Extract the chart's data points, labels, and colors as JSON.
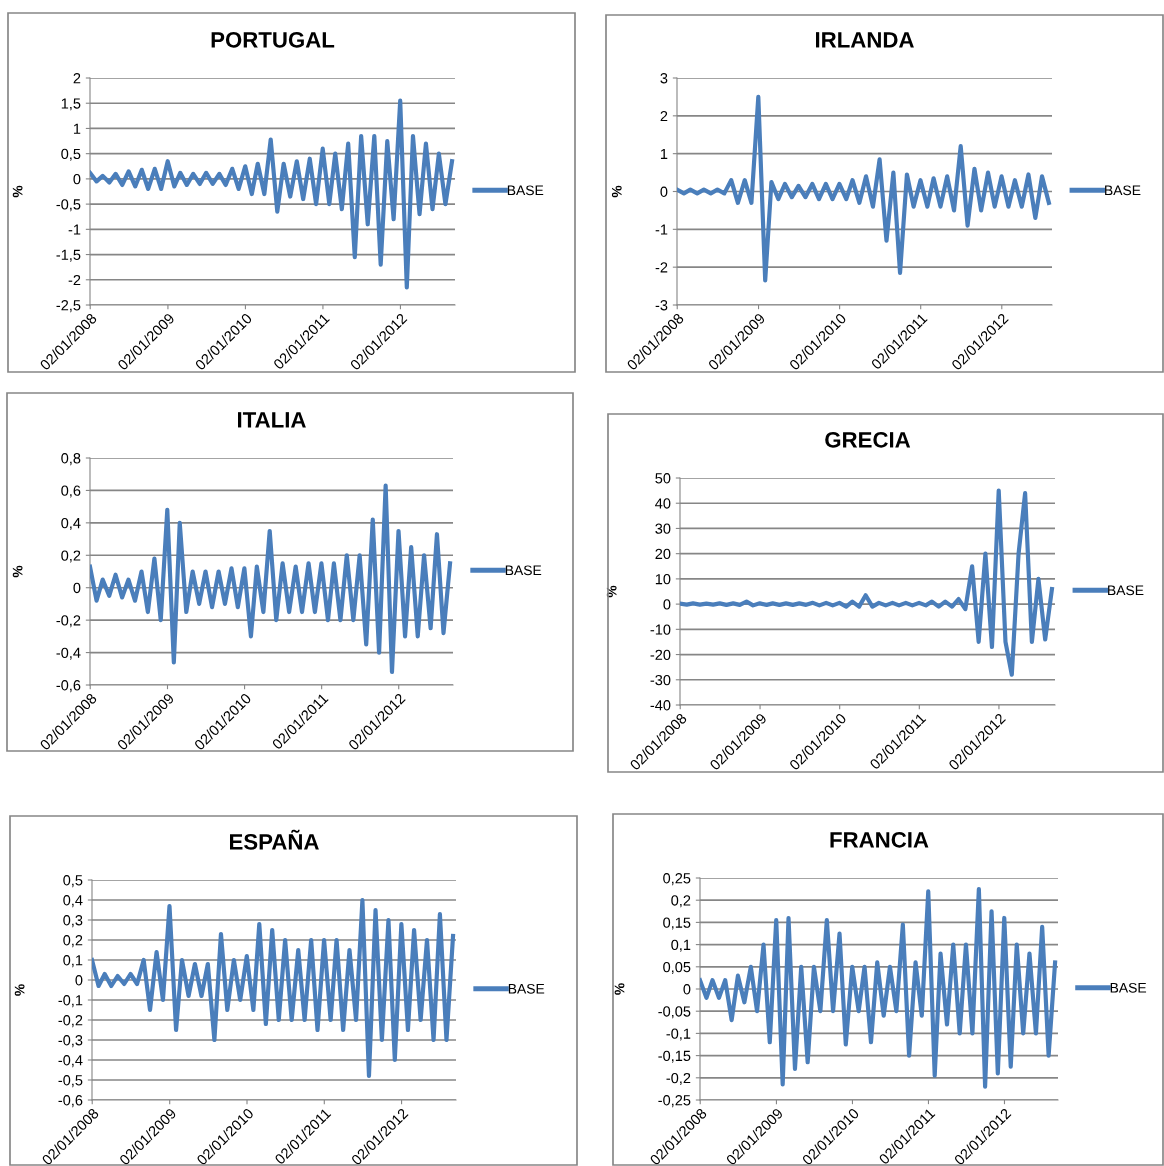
{
  "chart_data": [
    {
      "type": "line",
      "title": "PORTUGAL",
      "ylabel": "%",
      "grid": "y",
      "legend": "right",
      "x": [
        "2008-01",
        "2008-02",
        "2008-03",
        "2008-04",
        "2008-05",
        "2008-06",
        "2008-07",
        "2008-08",
        "2008-09",
        "2008-10",
        "2008-11",
        "2008-12",
        "2009-01",
        "2009-02",
        "2009-03",
        "2009-04",
        "2009-05",
        "2009-06",
        "2009-07",
        "2009-08",
        "2009-09",
        "2009-10",
        "2009-11",
        "2009-12",
        "2010-01",
        "2010-02",
        "2010-03",
        "2010-04",
        "2010-05",
        "2010-06",
        "2010-07",
        "2010-08",
        "2010-09",
        "2010-10",
        "2010-11",
        "2010-12",
        "2011-01",
        "2011-02",
        "2011-03",
        "2011-04",
        "2011-05",
        "2011-06",
        "2011-07",
        "2011-08",
        "2011-09",
        "2011-10",
        "2011-11",
        "2011-12",
        "2012-01",
        "2012-02",
        "2012-03",
        "2012-04",
        "2012-05",
        "2012-06",
        "2012-07",
        "2012-08",
        "2012-09"
      ],
      "series": [
        {
          "name": "BASE",
          "color": "#4a7ebb",
          "values": [
            0.12,
            -0.05,
            0.06,
            -0.07,
            0.1,
            -0.12,
            0.15,
            -0.15,
            0.18,
            -0.2,
            0.2,
            -0.2,
            0.35,
            -0.15,
            0.12,
            -0.12,
            0.1,
            -0.1,
            0.12,
            -0.1,
            0.1,
            -0.12,
            0.2,
            -0.2,
            0.25,
            -0.3,
            0.3,
            -0.3,
            0.78,
            -0.65,
            0.3,
            -0.35,
            0.35,
            -0.4,
            0.4,
            -0.5,
            0.6,
            -0.5,
            0.5,
            -0.6,
            0.7,
            -1.55,
            0.85,
            -0.9,
            0.85,
            -1.7,
            0.75,
            -0.8,
            1.55,
            -2.15,
            0.85,
            -0.7,
            0.7,
            -0.6,
            0.5,
            -0.5,
            0.35
          ]
        }
      ],
      "xlim": [
        "2008-01-01",
        "2012-09-15"
      ],
      "xticks": [
        {
          "value": "2008-01-02",
          "label": "02/01/2008"
        },
        {
          "value": "2009-01-02",
          "label": "02/01/2009"
        },
        {
          "value": "2010-01-02",
          "label": "02/01/2010"
        },
        {
          "value": "2011-01-02",
          "label": "02/01/2011"
        },
        {
          "value": "2012-01-02",
          "label": "02/01/2012"
        }
      ],
      "ylim": [
        -2.5,
        2
      ],
      "yticks": [
        2,
        {
          "value": 1.5,
          "label": "1,5"
        },
        1,
        {
          "value": 0.5,
          "label": "0,5"
        },
        0,
        {
          "value": -0.5,
          "label": "-0,5"
        },
        -1,
        {
          "value": -1.5,
          "label": "-1,5"
        },
        -2,
        {
          "value": -2.5,
          "label": "-2,5"
        }
      ]
    },
    {
      "type": "line",
      "title": "IRLANDA",
      "ylabel": "%",
      "grid": "y",
      "legend": "right",
      "x": [
        "2008-01",
        "2008-02",
        "2008-03",
        "2008-04",
        "2008-05",
        "2008-06",
        "2008-07",
        "2008-08",
        "2008-09",
        "2008-10",
        "2008-11",
        "2008-12",
        "2009-01",
        "2009-02",
        "2009-03",
        "2009-04",
        "2009-05",
        "2009-06",
        "2009-07",
        "2009-08",
        "2009-09",
        "2009-10",
        "2009-11",
        "2009-12",
        "2010-01",
        "2010-02",
        "2010-03",
        "2010-04",
        "2010-05",
        "2010-06",
        "2010-07",
        "2010-08",
        "2010-09",
        "2010-10",
        "2010-11",
        "2010-12",
        "2011-01",
        "2011-02",
        "2011-03",
        "2011-04",
        "2011-05",
        "2011-06",
        "2011-07",
        "2011-08",
        "2011-09",
        "2011-10",
        "2011-11",
        "2011-12",
        "2012-01",
        "2012-02",
        "2012-03",
        "2012-04",
        "2012-05",
        "2012-06",
        "2012-07",
        "2012-08"
      ],
      "series": [
        {
          "name": "BASE",
          "color": "#4a7ebb",
          "values": [
            0.05,
            -0.05,
            0.05,
            -0.05,
            0.05,
            -0.05,
            0.05,
            -0.05,
            0.3,
            -0.3,
            0.3,
            -0.3,
            2.5,
            -2.35,
            0.25,
            -0.2,
            0.2,
            -0.15,
            0.15,
            -0.15,
            0.2,
            -0.2,
            0.2,
            -0.2,
            0.2,
            -0.2,
            0.3,
            -0.3,
            0.4,
            -0.4,
            0.85,
            -1.3,
            0.5,
            -2.15,
            0.45,
            -0.4,
            0.3,
            -0.4,
            0.35,
            -0.4,
            0.4,
            -0.5,
            1.2,
            -0.9,
            0.6,
            -0.5,
            0.5,
            -0.4,
            0.4,
            -0.4,
            0.3,
            -0.4,
            0.45,
            -0.7,
            0.4,
            -0.3
          ]
        }
      ],
      "xlim": [
        "2008-01-01",
        "2012-08-15"
      ],
      "xticks": [
        {
          "value": "2008-01-02",
          "label": "02/01/2008"
        },
        {
          "value": "2009-01-02",
          "label": "02/01/2009"
        },
        {
          "value": "2010-01-02",
          "label": "02/01/2010"
        },
        {
          "value": "2011-01-02",
          "label": "02/01/2011"
        },
        {
          "value": "2012-01-02",
          "label": "02/01/2012"
        }
      ],
      "ylim": [
        -3,
        3
      ],
      "yticks": [
        3,
        2,
        1,
        0,
        -1,
        -2,
        -3
      ]
    },
    {
      "type": "line",
      "title": "ITALIA",
      "ylabel": "%",
      "grid": "y",
      "legend": "right",
      "x": [
        "2008-01",
        "2008-02",
        "2008-03",
        "2008-04",
        "2008-05",
        "2008-06",
        "2008-07",
        "2008-08",
        "2008-09",
        "2008-10",
        "2008-11",
        "2008-12",
        "2009-01",
        "2009-02",
        "2009-03",
        "2009-04",
        "2009-05",
        "2009-06",
        "2009-07",
        "2009-08",
        "2009-09",
        "2009-10",
        "2009-11",
        "2009-12",
        "2010-01",
        "2010-02",
        "2010-03",
        "2010-04",
        "2010-05",
        "2010-06",
        "2010-07",
        "2010-08",
        "2010-09",
        "2010-10",
        "2010-11",
        "2010-12",
        "2011-01",
        "2011-02",
        "2011-03",
        "2011-04",
        "2011-05",
        "2011-06",
        "2011-07",
        "2011-08",
        "2011-09",
        "2011-10",
        "2011-11",
        "2011-12",
        "2012-01",
        "2012-02",
        "2012-03",
        "2012-04",
        "2012-05",
        "2012-06",
        "2012-07",
        "2012-08",
        "2012-09"
      ],
      "series": [
        {
          "name": "BASE",
          "color": "#4a7ebb",
          "values": [
            0.13,
            -0.08,
            0.05,
            -0.05,
            0.08,
            -0.06,
            0.05,
            -0.08,
            0.1,
            -0.15,
            0.18,
            -0.2,
            0.48,
            -0.46,
            0.4,
            -0.15,
            0.1,
            -0.1,
            0.1,
            -0.12,
            0.1,
            -0.1,
            0.12,
            -0.12,
            0.12,
            -0.3,
            0.13,
            -0.15,
            0.35,
            -0.2,
            0.15,
            -0.15,
            0.13,
            -0.15,
            0.15,
            -0.15,
            0.15,
            -0.2,
            0.15,
            -0.2,
            0.2,
            -0.2,
            0.2,
            -0.35,
            0.42,
            -0.4,
            0.63,
            -0.52,
            0.35,
            -0.3,
            0.25,
            -0.3,
            0.2,
            -0.25,
            0.33,
            -0.28,
            0.15
          ]
        }
      ],
      "xlim": [
        "2008-01-01",
        "2012-09-15"
      ],
      "xticks": [
        {
          "value": "2008-01-02",
          "label": "02/01/2008"
        },
        {
          "value": "2009-01-02",
          "label": "02/01/2009"
        },
        {
          "value": "2010-01-02",
          "label": "02/01/2010"
        },
        {
          "value": "2011-01-02",
          "label": "02/01/2011"
        },
        {
          "value": "2012-01-02",
          "label": "02/01/2012"
        }
      ],
      "ylim": [
        -0.6,
        0.8
      ],
      "yticks": [
        {
          "value": 0.8,
          "label": "0,8"
        },
        {
          "value": 0.6,
          "label": "0,6"
        },
        {
          "value": 0.4,
          "label": "0,4"
        },
        {
          "value": 0.2,
          "label": "0,2"
        },
        0,
        {
          "value": -0.2,
          "label": "-0,2"
        },
        {
          "value": -0.4,
          "label": "-0,4"
        },
        {
          "value": -0.6,
          "label": "-0,6"
        }
      ]
    },
    {
      "type": "line",
      "title": "GRECIA",
      "ylabel": "%",
      "grid": "y",
      "legend": "right",
      "x": [
        "2008-01",
        "2008-02",
        "2008-03",
        "2008-04",
        "2008-05",
        "2008-06",
        "2008-07",
        "2008-08",
        "2008-09",
        "2008-10",
        "2008-11",
        "2008-12",
        "2009-01",
        "2009-02",
        "2009-03",
        "2009-04",
        "2009-05",
        "2009-06",
        "2009-07",
        "2009-08",
        "2009-09",
        "2009-10",
        "2009-11",
        "2009-12",
        "2010-01",
        "2010-02",
        "2010-03",
        "2010-04",
        "2010-05",
        "2010-06",
        "2010-07",
        "2010-08",
        "2010-09",
        "2010-10",
        "2010-11",
        "2010-12",
        "2011-01",
        "2011-02",
        "2011-03",
        "2011-04",
        "2011-05",
        "2011-06",
        "2011-07",
        "2011-08",
        "2011-09",
        "2011-10",
        "2011-11",
        "2011-12",
        "2012-01",
        "2012-02",
        "2012-03",
        "2012-04",
        "2012-05",
        "2012-06",
        "2012-07",
        "2012-08",
        "2012-09"
      ],
      "series": [
        {
          "name": "BASE",
          "color": "#4a7ebb",
          "values": [
            0.2,
            -0.2,
            0.3,
            -0.2,
            0.2,
            -0.2,
            0.3,
            -0.3,
            0.3,
            -0.3,
            1,
            -0.5,
            0.3,
            -0.3,
            0.3,
            -0.3,
            0.3,
            -0.3,
            0.3,
            -0.3,
            0.5,
            -0.5,
            0.5,
            -0.5,
            0.5,
            -1,
            1,
            -1,
            3.5,
            -1,
            0.5,
            -0.5,
            0.5,
            -0.5,
            0.5,
            -0.5,
            0.5,
            -0.5,
            1,
            -1,
            1,
            -1,
            2,
            -2,
            15,
            -15,
            20,
            -17,
            45,
            -15,
            -28,
            20,
            44,
            -15,
            10,
            -14,
            6
          ]
        }
      ],
      "xlim": [
        "2008-01-01",
        "2012-09-15"
      ],
      "xticks": [
        {
          "value": "2008-01-02",
          "label": "02/01/2008"
        },
        {
          "value": "2009-01-02",
          "label": "02/01/2009"
        },
        {
          "value": "2010-01-02",
          "label": "02/01/2010"
        },
        {
          "value": "2011-01-02",
          "label": "02/01/2011"
        },
        {
          "value": "2012-01-02",
          "label": "02/01/2012"
        }
      ],
      "ylim": [
        -40,
        50
      ],
      "yticks": [
        50,
        40,
        30,
        20,
        10,
        0,
        -10,
        -20,
        -30,
        -40
      ]
    },
    {
      "type": "line",
      "title": "ESPAÑA",
      "ylabel": "%",
      "grid": "y",
      "legend": "right",
      "x": [
        "2008-01",
        "2008-02",
        "2008-03",
        "2008-04",
        "2008-05",
        "2008-06",
        "2008-07",
        "2008-08",
        "2008-09",
        "2008-10",
        "2008-11",
        "2008-12",
        "2009-01",
        "2009-02",
        "2009-03",
        "2009-04",
        "2009-05",
        "2009-06",
        "2009-07",
        "2009-08",
        "2009-09",
        "2009-10",
        "2009-11",
        "2009-12",
        "2010-01",
        "2010-02",
        "2010-03",
        "2010-04",
        "2010-05",
        "2010-06",
        "2010-07",
        "2010-08",
        "2010-09",
        "2010-10",
        "2010-11",
        "2010-12",
        "2011-01",
        "2011-02",
        "2011-03",
        "2011-04",
        "2011-05",
        "2011-06",
        "2011-07",
        "2011-08",
        "2011-09",
        "2011-10",
        "2011-11",
        "2011-12",
        "2012-01",
        "2012-02",
        "2012-03",
        "2012-04",
        "2012-05",
        "2012-06",
        "2012-07",
        "2012-08",
        "2012-09"
      ],
      "series": [
        {
          "name": "BASE",
          "color": "#4a7ebb",
          "values": [
            0.1,
            -0.03,
            0.03,
            -0.03,
            0.02,
            -0.02,
            0.03,
            -0.02,
            0.1,
            -0.15,
            0.14,
            -0.1,
            0.37,
            -0.25,
            0.1,
            -0.08,
            0.08,
            -0.08,
            0.08,
            -0.3,
            0.23,
            -0.15,
            0.1,
            -0.1,
            0.12,
            -0.15,
            0.28,
            -0.22,
            0.25,
            -0.2,
            0.2,
            -0.2,
            0.15,
            -0.2,
            0.2,
            -0.25,
            0.2,
            -0.2,
            0.2,
            -0.25,
            0.15,
            -0.2,
            0.4,
            -0.48,
            0.35,
            -0.3,
            0.3,
            -0.4,
            0.28,
            -0.25,
            0.25,
            -0.2,
            0.2,
            -0.3,
            0.33,
            -0.3,
            0.22
          ]
        }
      ],
      "xlim": [
        "2008-01-01",
        "2012-09-15"
      ],
      "xticks": [
        {
          "value": "2008-01-02",
          "label": "02/01/2008"
        },
        {
          "value": "2009-01-02",
          "label": "02/01/2009"
        },
        {
          "value": "2010-01-02",
          "label": "02/01/2010"
        },
        {
          "value": "2011-01-02",
          "label": "02/01/2011"
        },
        {
          "value": "2012-01-02",
          "label": "02/01/2012"
        }
      ],
      "ylim": [
        -0.6,
        0.5
      ],
      "yticks": [
        {
          "value": 0.5,
          "label": "0,5"
        },
        {
          "value": 0.4,
          "label": "0,4"
        },
        {
          "value": 0.3,
          "label": "0,3"
        },
        {
          "value": 0.2,
          "label": "0,2"
        },
        {
          "value": 0.1,
          "label": "0,1"
        },
        0,
        {
          "value": -0.1,
          "label": "-0,1"
        },
        {
          "value": -0.2,
          "label": "-0,2"
        },
        {
          "value": -0.3,
          "label": "-0,3"
        },
        {
          "value": -0.4,
          "label": "-0,4"
        },
        {
          "value": -0.5,
          "label": "-0,5"
        },
        {
          "value": -0.6,
          "label": "-0,6"
        }
      ]
    },
    {
      "type": "line",
      "title": "FRANCIA",
      "ylabel": "%",
      "grid": "y",
      "legend": "right",
      "x": [
        "2008-01",
        "2008-02",
        "2008-03",
        "2008-04",
        "2008-05",
        "2008-06",
        "2008-07",
        "2008-08",
        "2008-09",
        "2008-10",
        "2008-11",
        "2008-12",
        "2009-01",
        "2009-02",
        "2009-03",
        "2009-04",
        "2009-05",
        "2009-06",
        "2009-07",
        "2009-08",
        "2009-09",
        "2009-10",
        "2009-11",
        "2009-12",
        "2010-01",
        "2010-02",
        "2010-03",
        "2010-04",
        "2010-05",
        "2010-06",
        "2010-07",
        "2010-08",
        "2010-09",
        "2010-10",
        "2010-11",
        "2010-12",
        "2011-01",
        "2011-02",
        "2011-03",
        "2011-04",
        "2011-05",
        "2011-06",
        "2011-07",
        "2011-08",
        "2011-09",
        "2011-10",
        "2011-11",
        "2011-12",
        "2012-01",
        "2012-02",
        "2012-03",
        "2012-04",
        "2012-05",
        "2012-06",
        "2012-07",
        "2012-08",
        "2012-09"
      ],
      "series": [
        {
          "name": "BASE",
          "color": "#4a7ebb",
          "values": [
            0.02,
            -0.02,
            0.02,
            -0.02,
            0.02,
            -0.07,
            0.03,
            -0.03,
            0.05,
            -0.05,
            0.1,
            -0.12,
            0.155,
            -0.215,
            0.16,
            -0.18,
            0.05,
            -0.165,
            0.05,
            -0.05,
            0.155,
            -0.05,
            0.125,
            -0.125,
            0.05,
            -0.05,
            0.05,
            -0.12,
            0.06,
            -0.06,
            0.05,
            -0.05,
            0.145,
            -0.15,
            0.06,
            -0.06,
            0.22,
            -0.195,
            0.08,
            -0.08,
            0.1,
            -0.1,
            0.1,
            -0.1,
            0.225,
            -0.22,
            0.175,
            -0.19,
            0.16,
            -0.175,
            0.1,
            -0.1,
            0.08,
            -0.1,
            0.14,
            -0.15,
            0.06
          ]
        }
      ],
      "xlim": [
        "2008-01-01",
        "2012-09-15"
      ],
      "xticks": [
        {
          "value": "2008-01-02",
          "label": "02/01/2008"
        },
        {
          "value": "2009-01-02",
          "label": "02/01/2009"
        },
        {
          "value": "2010-01-02",
          "label": "02/01/2010"
        },
        {
          "value": "2011-01-02",
          "label": "02/01/2011"
        },
        {
          "value": "2012-01-02",
          "label": "02/01/2012"
        }
      ],
      "ylim": [
        -0.25,
        0.25
      ],
      "yticks": [
        {
          "value": 0.25,
          "label": "0,25"
        },
        {
          "value": 0.2,
          "label": "0,2"
        },
        {
          "value": 0.15,
          "label": "0,15"
        },
        {
          "value": 0.1,
          "label": "0,1"
        },
        {
          "value": 0.05,
          "label": "0,05"
        },
        0,
        {
          "value": -0.05,
          "label": "-0,05"
        },
        {
          "value": -0.1,
          "label": "-0,1"
        },
        {
          "value": -0.15,
          "label": "-0,15"
        },
        {
          "value": -0.2,
          "label": "-0,2"
        },
        {
          "value": -0.25,
          "label": "-0,25"
        }
      ]
    }
  ]
}
